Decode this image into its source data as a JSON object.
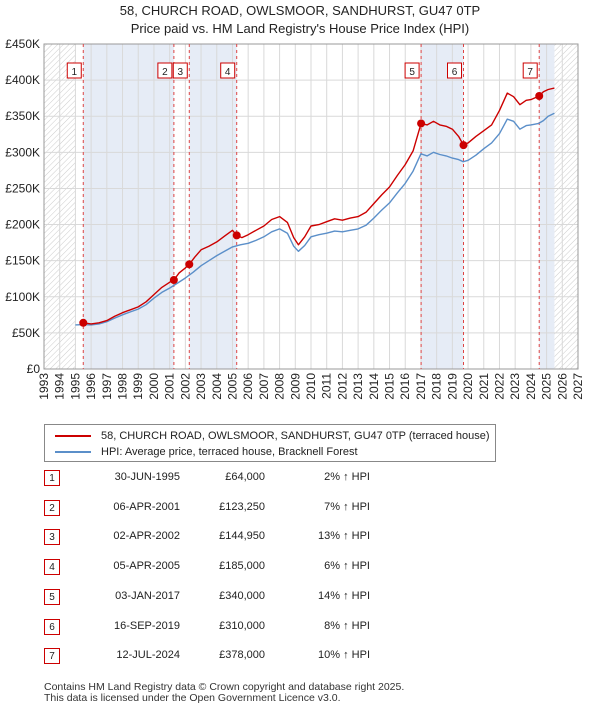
{
  "chart_data": {
    "type": "line",
    "title": "58, CHURCH ROAD, OWLSMOOR, SANDHURST, GU47 0TP",
    "subtitle": "Price paid vs. HM Land Registry's House Price Index (HPI)",
    "xlabel": "",
    "ylabel": "",
    "xlim": [
      1993,
      2027
    ],
    "ylim": [
      0,
      450000
    ],
    "x_ticks": [
      1993,
      1994,
      1995,
      1996,
      1997,
      1998,
      1999,
      2000,
      2001,
      2002,
      2003,
      2004,
      2005,
      2006,
      2007,
      2008,
      2009,
      2010,
      2011,
      2012,
      2013,
      2014,
      2015,
      2016,
      2017,
      2018,
      2019,
      2020,
      2021,
      2022,
      2023,
      2024,
      2025,
      2026,
      2027
    ],
    "y_ticks": [
      {
        "value": 0,
        "label": "£0"
      },
      {
        "value": 50000,
        "label": "£50K"
      },
      {
        "value": 100000,
        "label": "£100K"
      },
      {
        "value": 150000,
        "label": "£150K"
      },
      {
        "value": 200000,
        "label": "£200K"
      },
      {
        "value": 250000,
        "label": "£250K"
      },
      {
        "value": 300000,
        "label": "£300K"
      },
      {
        "value": 350000,
        "label": "£350K"
      },
      {
        "value": 400000,
        "label": "£400K"
      },
      {
        "value": 450000,
        "label": "£450K"
      }
    ],
    "grid": true,
    "data_start": 1995.0,
    "data_end": 2025.5,
    "series": [
      {
        "name": "58, CHURCH ROAD, OWLSMOOR, SANDHURST, GU47 0TP (terraced house)",
        "color": "#cc0000",
        "x": [
          1995.5,
          1996.0,
          1996.5,
          1997.0,
          1997.5,
          1998.0,
          1998.5,
          1999.0,
          1999.5,
          2000.0,
          2000.5,
          2001.0,
          2001.27,
          2001.6,
          2002.0,
          2002.25,
          2002.6,
          2003.0,
          2003.5,
          2004.0,
          2004.5,
          2005.0,
          2005.27,
          2005.6,
          2006.0,
          2006.5,
          2007.0,
          2007.5,
          2008.0,
          2008.5,
          2008.9,
          2009.2,
          2009.6,
          2010.0,
          2010.5,
          2011.0,
          2011.5,
          2012.0,
          2012.5,
          2013.0,
          2013.5,
          2014.0,
          2014.5,
          2015.0,
          2015.5,
          2016.0,
          2016.5,
          2017.01,
          2017.4,
          2017.8,
          2018.2,
          2018.6,
          2019.0,
          2019.4,
          2019.71,
          2020.0,
          2020.5,
          2021.0,
          2021.5,
          2022.0,
          2022.5,
          2022.9,
          2023.3,
          2023.7,
          2024.0,
          2024.53,
          2024.8,
          2025.1,
          2025.5
        ],
        "values": [
          64000,
          62500,
          64000,
          67000,
          73000,
          78000,
          82000,
          86000,
          93000,
          103000,
          113000,
          120000,
          123250,
          133000,
          140000,
          144950,
          155000,
          165000,
          170000,
          176000,
          184000,
          192000,
          185000,
          182000,
          186000,
          192000,
          198000,
          207000,
          211000,
          203000,
          182000,
          172000,
          183000,
          198000,
          200000,
          204000,
          208000,
          206000,
          209000,
          211000,
          217000,
          229000,
          241000,
          252000,
          268000,
          283000,
          302000,
          340000,
          338000,
          343000,
          338000,
          336000,
          332000,
          322000,
          310000,
          313000,
          322000,
          330000,
          338000,
          358000,
          382000,
          377000,
          366000,
          372000,
          373000,
          378000,
          384000,
          387000,
          389000
        ]
      },
      {
        "name": "HPI: Average price, terraced house, Bracknell Forest",
        "color": "#5b8fc9",
        "x": [
          1995.0,
          1995.5,
          1996.0,
          1996.5,
          1997.0,
          1997.5,
          1998.0,
          1998.5,
          1999.0,
          1999.5,
          2000.0,
          2000.5,
          2001.0,
          2001.5,
          2002.0,
          2002.5,
          2003.0,
          2003.5,
          2004.0,
          2004.5,
          2005.0,
          2005.5,
          2006.0,
          2006.5,
          2007.0,
          2007.5,
          2008.0,
          2008.5,
          2008.9,
          2009.2,
          2009.6,
          2010.0,
          2010.5,
          2011.0,
          2011.5,
          2012.0,
          2012.5,
          2013.0,
          2013.5,
          2014.0,
          2014.5,
          2015.0,
          2015.5,
          2016.0,
          2016.5,
          2017.0,
          2017.4,
          2017.8,
          2018.2,
          2018.6,
          2019.0,
          2019.4,
          2019.7,
          2020.0,
          2020.5,
          2021.0,
          2021.5,
          2022.0,
          2022.5,
          2022.9,
          2023.3,
          2023.7,
          2024.0,
          2024.5,
          2024.8,
          2025.1,
          2025.5
        ],
        "values": [
          61000,
          61500,
          61000,
          62500,
          65500,
          70500,
          75000,
          79000,
          83000,
          89000,
          98000,
          106000,
          112000,
          119000,
          126000,
          134000,
          143000,
          150000,
          157000,
          163000,
          169000,
          172000,
          174000,
          178000,
          183000,
          190000,
          194000,
          188000,
          170000,
          163000,
          171000,
          183000,
          186000,
          188000,
          191000,
          190000,
          192000,
          194000,
          199000,
          209000,
          220000,
          230000,
          244000,
          257000,
          274000,
          298000,
          295000,
          300000,
          297000,
          295000,
          292000,
          290000,
          287000,
          289000,
          296000,
          305000,
          313000,
          326000,
          346000,
          343000,
          332000,
          337000,
          338000,
          340000,
          344000,
          350000,
          354000
        ]
      }
    ],
    "sales": [
      {
        "num": "1",
        "x": 1995.5,
        "value": 64000
      },
      {
        "num": "2",
        "x": 2001.27,
        "value": 123250
      },
      {
        "num": "3",
        "x": 2002.25,
        "value": 144950
      },
      {
        "num": "4",
        "x": 2005.27,
        "value": 185000
      },
      {
        "num": "5",
        "x": 2017.01,
        "value": 340000
      },
      {
        "num": "6",
        "x": 2019.71,
        "value": 310000
      },
      {
        "num": "7",
        "x": 2024.53,
        "value": 378000
      }
    ],
    "shaded_spans": [
      [
        1995.5,
        2001.27
      ],
      [
        2002.25,
        2005.27
      ],
      [
        2017.01,
        2019.71
      ],
      [
        2024.53,
        2025.5
      ]
    ]
  },
  "legend": {
    "items": [
      {
        "label": "58, CHURCH ROAD, OWLSMOOR, SANDHURST, GU47 0TP (terraced house)",
        "color": "#cc0000"
      },
      {
        "label": "HPI: Average price, terraced house, Bracknell Forest",
        "color": "#5b8fc9"
      }
    ]
  },
  "sales_table": [
    {
      "num": "1",
      "date": "30-JUN-1995",
      "price": "£64,000",
      "hpi": "2% ↑ HPI"
    },
    {
      "num": "2",
      "date": "06-APR-2001",
      "price": "£123,250",
      "hpi": "7% ↑ HPI"
    },
    {
      "num": "3",
      "date": "02-APR-2002",
      "price": "£144,950",
      "hpi": "13% ↑ HPI"
    },
    {
      "num": "4",
      "date": "05-APR-2005",
      "price": "£185,000",
      "hpi": "6% ↑ HPI"
    },
    {
      "num": "5",
      "date": "03-JAN-2017",
      "price": "£340,000",
      "hpi": "14% ↑ HPI"
    },
    {
      "num": "6",
      "date": "16-SEP-2019",
      "price": "£310,000",
      "hpi": "8% ↑ HPI"
    },
    {
      "num": "7",
      "date": "12-JUL-2024",
      "price": "£378,000",
      "hpi": "10% ↑ HPI"
    }
  ],
  "footer": {
    "line1": "Contains HM Land Registry data © Crown copyright and database right 2025.",
    "line2": "This data is licensed under the Open Government Licence v3.0."
  }
}
